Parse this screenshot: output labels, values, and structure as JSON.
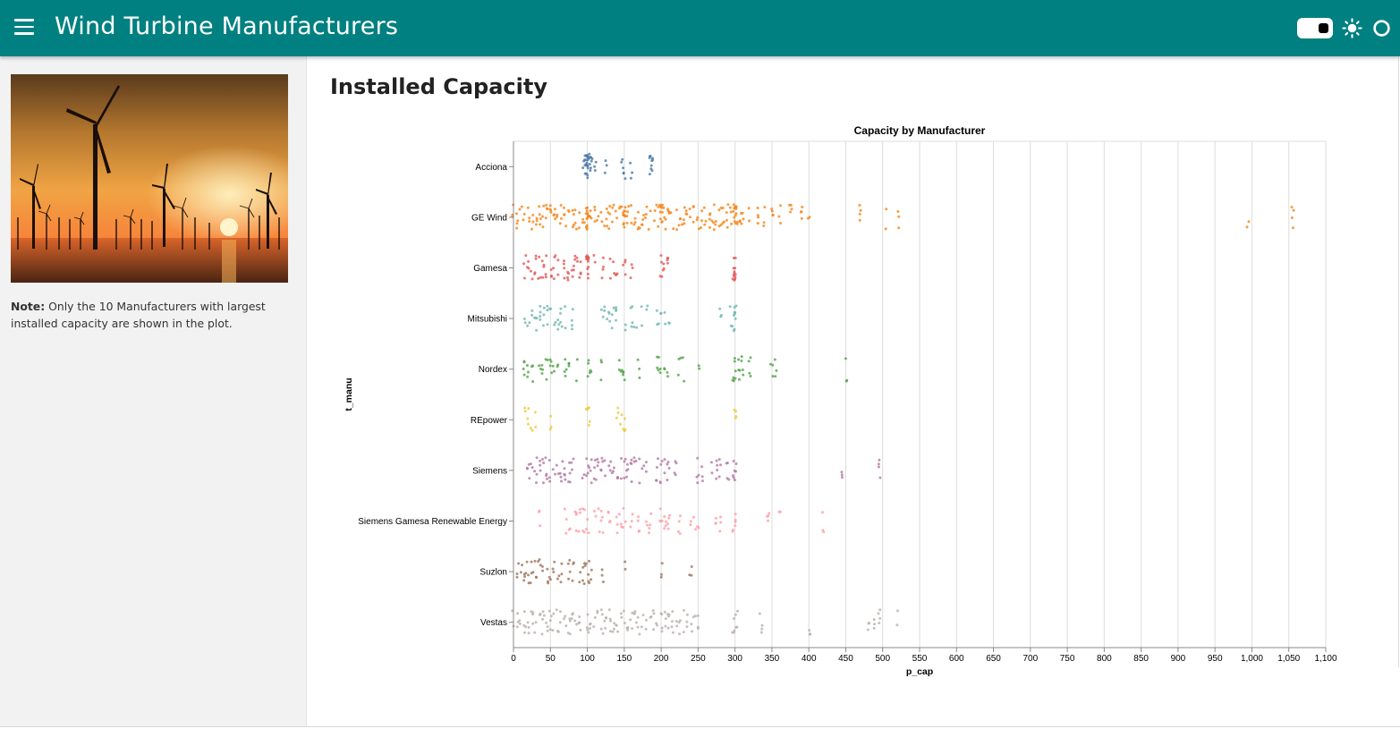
{
  "header": {
    "title": "Wind Turbine Manufacturers",
    "menu_icon": "hamburger-menu-icon",
    "theme_toggle_icon": "toggle-switch-icon",
    "light_icon": "sun-icon",
    "dark_icon": "circle-icon",
    "background_color": "#008080"
  },
  "sidebar": {
    "image_alt": "Offshore wind turbines at sunset",
    "note_label": "Note:",
    "note_text": " Only the 10 Manufacturers with largest installed capacity are shown in the plot."
  },
  "main": {
    "page_title": "Installed Capacity"
  },
  "chart_data": {
    "type": "scatter",
    "title": "Capacity by Manufacturer",
    "xlabel": "p_cap",
    "ylabel": "t_manu",
    "xlim": [
      0,
      1100
    ],
    "x_ticks": [
      0,
      50,
      100,
      150,
      200,
      250,
      300,
      350,
      400,
      450,
      500,
      550,
      600,
      650,
      700,
      750,
      800,
      850,
      900,
      950,
      1000,
      1050,
      1100
    ],
    "x_tick_labels": [
      "0",
      "50",
      "100",
      "150",
      "200",
      "250",
      "300",
      "350",
      "400",
      "450",
      "500",
      "550",
      "600",
      "650",
      "700",
      "750",
      "800",
      "850",
      "900",
      "950",
      "1,000",
      "1,050",
      "1,100"
    ],
    "grid": true,
    "legend": "none",
    "jitter": "vertical",
    "series": [
      {
        "name": "Acciona",
        "color": "#4c78a8",
        "values": [
          100,
          98,
          102,
          105,
          95,
          100,
          99,
          103,
          101,
          110,
          125,
          150,
          148,
          160,
          185,
          186,
          187,
          100,
          97,
          104
        ]
      },
      {
        "name": "GE Wind",
        "color": "#f58518",
        "values": [
          0,
          5,
          10,
          15,
          20,
          25,
          30,
          35,
          40,
          45,
          50,
          55,
          60,
          65,
          70,
          75,
          80,
          85,
          90,
          95,
          100,
          100,
          100,
          100,
          105,
          110,
          115,
          120,
          125,
          130,
          135,
          140,
          145,
          150,
          150,
          150,
          150,
          155,
          160,
          165,
          170,
          175,
          180,
          185,
          190,
          195,
          200,
          200,
          200,
          200,
          205,
          210,
          215,
          220,
          225,
          230,
          235,
          240,
          245,
          250,
          255,
          260,
          265,
          270,
          275,
          280,
          285,
          290,
          295,
          298,
          300,
          300,
          300,
          302,
          305,
          310,
          320,
          330,
          340,
          350,
          360,
          375,
          390,
          400,
          470,
          505,
          520,
          995,
          1055
        ]
      },
      {
        "name": "Gamesa",
        "color": "#e45756",
        "values": [
          15,
          20,
          25,
          30,
          35,
          40,
          45,
          50,
          55,
          60,
          70,
          75,
          80,
          85,
          90,
          100,
          100,
          100,
          100,
          110,
          120,
          130,
          135,
          140,
          150,
          160,
          200,
          202,
          205,
          210,
          298,
          300,
          300,
          302
        ]
      },
      {
        "name": "Mitsubishi",
        "color": "#72b7b2",
        "values": [
          15,
          20,
          25,
          30,
          35,
          40,
          45,
          50,
          55,
          60,
          65,
          70,
          80,
          120,
          125,
          130,
          135,
          140,
          150,
          160,
          165,
          175,
          180,
          195,
          200,
          205,
          210,
          280,
          295,
          300,
          300,
          300
        ]
      },
      {
        "name": "Nordex",
        "color": "#54a24b",
        "values": [
          15,
          20,
          25,
          35,
          40,
          45,
          50,
          55,
          60,
          70,
          75,
          85,
          100,
          105,
          120,
          145,
          150,
          170,
          195,
          200,
          205,
          210,
          225,
          230,
          250,
          298,
          300,
          305,
          310,
          320,
          350,
          355,
          450
        ]
      },
      {
        "name": "REpower",
        "color": "#eeca3b",
        "values": [
          15,
          20,
          25,
          30,
          50,
          100,
          102,
          140,
          145,
          150,
          300
        ]
      },
      {
        "name": "Siemens",
        "color": "#b279a2",
        "values": [
          20,
          25,
          30,
          35,
          40,
          45,
          50,
          55,
          60,
          65,
          70,
          75,
          80,
          95,
          100,
          102,
          105,
          110,
          115,
          120,
          125,
          130,
          135,
          140,
          145,
          150,
          155,
          160,
          165,
          170,
          175,
          180,
          195,
          200,
          205,
          210,
          220,
          250,
          255,
          270,
          275,
          280,
          290,
          298,
          300,
          445,
          495
        ]
      },
      {
        "name": "Siemens Gamesa Renewable Energy",
        "color": "#ff9da6",
        "values": [
          35,
          70,
          75,
          85,
          90,
          95,
          100,
          110,
          115,
          120,
          130,
          140,
          145,
          150,
          160,
          170,
          180,
          185,
          200,
          205,
          210,
          225,
          240,
          245,
          250,
          275,
          280,
          298,
          300,
          345,
          360,
          420
        ]
      },
      {
        "name": "Suzlon",
        "color": "#9d755d",
        "values": [
          5,
          10,
          15,
          20,
          25,
          30,
          35,
          40,
          45,
          50,
          55,
          60,
          65,
          75,
          80,
          90,
          95,
          98,
          100,
          102,
          105,
          120,
          150,
          200,
          240
        ]
      },
      {
        "name": "Vestas",
        "color": "#bab0ac",
        "values": [
          0,
          5,
          10,
          15,
          20,
          25,
          30,
          35,
          40,
          45,
          50,
          55,
          60,
          65,
          70,
          75,
          80,
          85,
          90,
          100,
          105,
          110,
          115,
          120,
          125,
          130,
          135,
          140,
          145,
          150,
          155,
          160,
          165,
          170,
          175,
          180,
          185,
          190,
          195,
          200,
          205,
          210,
          215,
          220,
          225,
          230,
          235,
          240,
          245,
          250,
          298,
          300,
          302,
          335,
          400,
          480,
          490,
          495,
          520
        ]
      }
    ]
  }
}
